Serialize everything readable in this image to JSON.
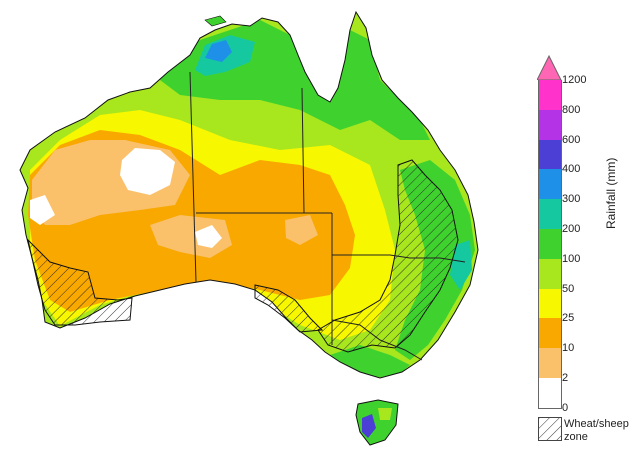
{
  "legend": {
    "title": "Rainfall (mm)",
    "ticks": [
      "1200",
      "800",
      "600",
      "400",
      "300",
      "200",
      "100",
      "50",
      "25",
      "10",
      "2",
      "0"
    ],
    "bands": [
      {
        "range": "800-1200",
        "color": "#ff33cc"
      },
      {
        "range": "600-800",
        "color": "#b433e6"
      },
      {
        "range": "400-600",
        "color": "#4b3fd6"
      },
      {
        "range": "300-400",
        "color": "#1e90e8"
      },
      {
        "range": "200-300",
        "color": "#15c8a0"
      },
      {
        "range": "100-200",
        "color": "#3fd22e"
      },
      {
        "range": "50-100",
        "color": "#a8e61e"
      },
      {
        "range": "25-50",
        "color": "#f7f700"
      },
      {
        "range": "10-25",
        "color": "#f9a800"
      },
      {
        "range": "2-10",
        "color": "#fac06a"
      },
      {
        "range": "0-2",
        "color": "#ffffff"
      }
    ],
    "arrow_color": "#ff66b3",
    "hatch_label": "Wheat/sheep zone"
  },
  "map": {
    "colors": {
      "white": "#ffffff",
      "lightorange": "#fac06a",
      "orange": "#f9a800",
      "yellow": "#f7f700",
      "lime": "#a8e61e",
      "green": "#3fd22e",
      "teal": "#15c8a0",
      "blue": "#1e90e8",
      "indigo": "#4b3fd6",
      "border": "#222222",
      "outline": "#111111"
    }
  }
}
